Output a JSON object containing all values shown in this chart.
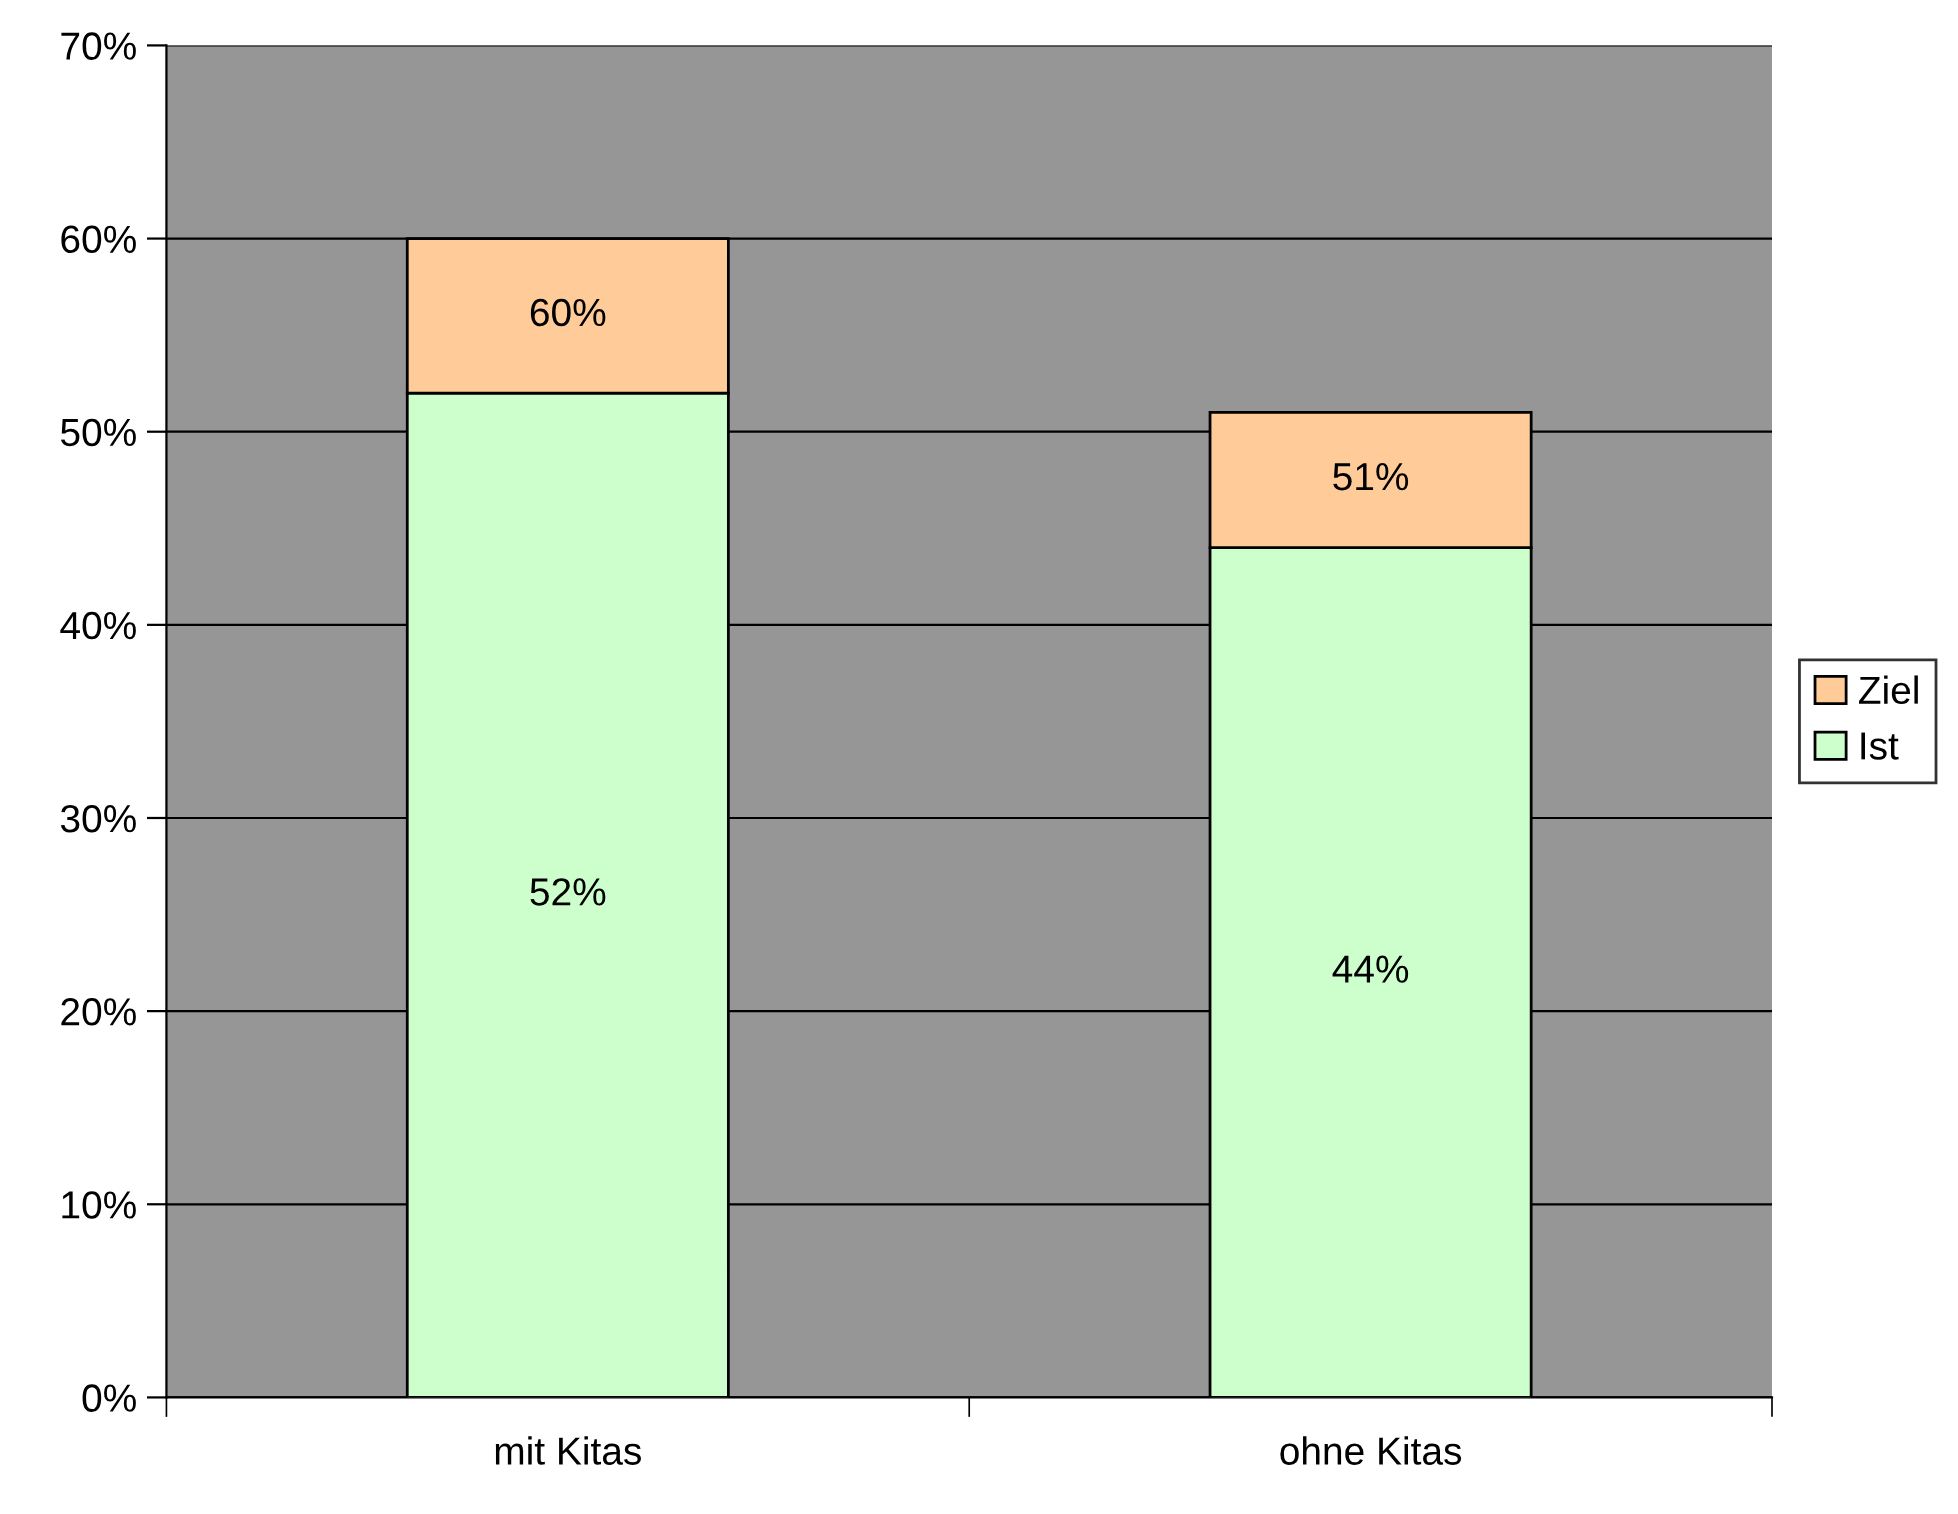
{
  "chart_data": {
    "type": "bar",
    "stacked": true,
    "categories": [
      "mit Kitas",
      "ohne Kitas"
    ],
    "series": [
      {
        "name": "Ist",
        "color": "#ccffcc",
        "values": [
          52,
          44
        ],
        "value_labels": [
          "52%",
          "44%"
        ]
      },
      {
        "name": "Ziel",
        "color": "#ffcc99",
        "values": [
          8,
          7
        ]
      }
    ],
    "totals": [
      "60%",
      "51%"
    ],
    "ylim": [
      0,
      70
    ],
    "yticks": [
      {
        "value": 0,
        "label": "0%"
      },
      {
        "value": 10,
        "label": "10%"
      },
      {
        "value": 20,
        "label": "20%"
      },
      {
        "value": 30,
        "label": "30%"
      },
      {
        "value": 40,
        "label": "40%"
      },
      {
        "value": 50,
        "label": "50%"
      },
      {
        "value": 60,
        "label": "60%"
      },
      {
        "value": 70,
        "label": "70%"
      }
    ],
    "grid": "y",
    "legend": "right"
  }
}
